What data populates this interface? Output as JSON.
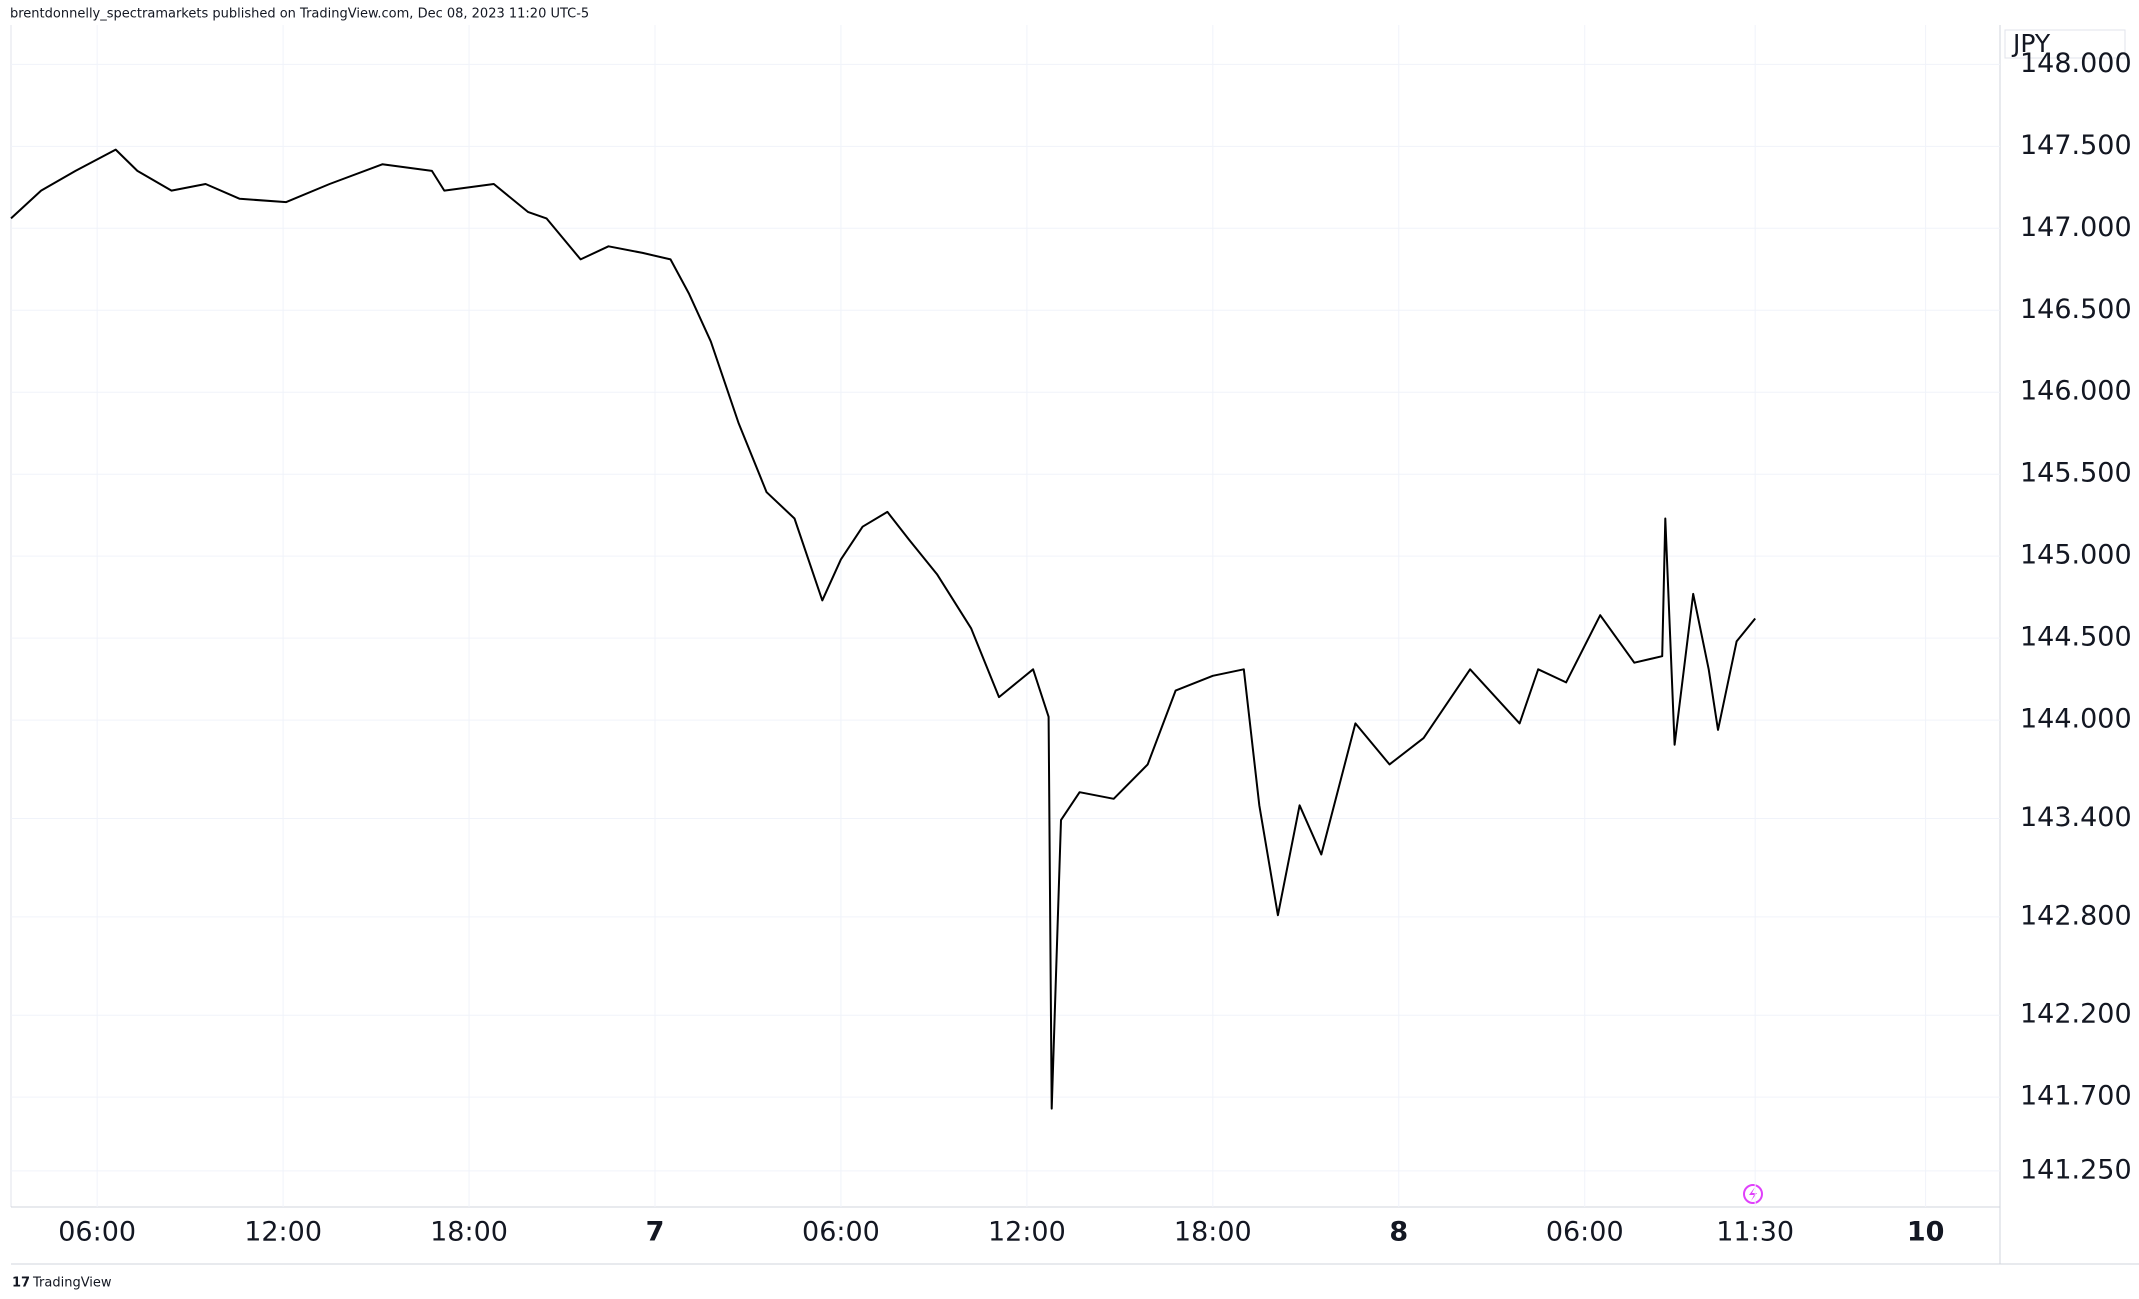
{
  "header": {
    "published": "brentdonnelly_spectramarkets published on TradingView.com, Dec 08, 2023 11:20 UTC-5",
    "symbol": "JPY"
  },
  "footer": {
    "brand": "TradingView"
  },
  "chart_data": {
    "type": "line",
    "x": [
      3.22,
      4.19,
      5.3,
      6.6,
      7.3,
      8.4,
      9.5,
      10.6,
      12.1,
      13.5,
      15.2,
      16.8,
      17.2,
      18.8,
      19.9,
      20.5,
      21.6,
      22.5,
      23.6,
      24.5,
      25.1,
      25.8,
      26.7,
      27.6,
      28.5,
      29.4,
      30.0,
      30.7,
      31.5,
      32.2,
      33.1,
      34.2,
      35.1,
      36.2,
      36.7,
      36.8,
      37.1,
      37.7,
      38.8,
      39.9,
      40.8,
      42.0,
      43.0,
      43.5,
      44.1,
      44.8,
      45.5,
      46.6,
      47.7,
      48.8,
      50.3,
      51.9,
      52.5,
      53.4,
      54.5,
      55.6,
      56.5,
      56.6,
      56.9,
      57.5,
      58.0,
      58.3,
      58.9,
      59.5
    ],
    "series": [
      {
        "color": "#000000",
        "values": [
          147.06,
          147.23,
          147.35,
          147.48,
          147.35,
          147.23,
          147.27,
          147.18,
          147.16,
          147.27,
          147.39,
          147.35,
          147.23,
          147.27,
          147.1,
          147.06,
          146.81,
          146.89,
          146.85,
          146.81,
          146.6,
          146.31,
          145.81,
          145.39,
          145.23,
          144.73,
          144.98,
          145.18,
          145.27,
          145.1,
          144.89,
          144.56,
          144.14,
          144.31,
          144.02,
          141.63,
          143.39,
          143.56,
          143.52,
          143.73,
          144.18,
          144.27,
          144.31,
          143.48,
          142.81,
          143.48,
          143.18,
          143.98,
          143.73,
          143.89,
          144.31,
          143.98,
          144.31,
          144.23,
          144.64,
          144.35,
          144.39,
          145.23,
          143.85,
          144.77,
          144.31,
          143.94,
          144.48,
          144.62
        ]
      }
    ],
    "xlim": [
      3.22,
      67.4
    ],
    "xticks": [
      {
        "value": 6,
        "label": "06:00"
      },
      {
        "value": 12,
        "label": "12:00"
      },
      {
        "value": 18,
        "label": "18:00"
      },
      {
        "value": 24,
        "label": "7"
      },
      {
        "value": 30,
        "label": "06:00"
      },
      {
        "value": 36,
        "label": "12:00"
      },
      {
        "value": 42,
        "label": "18:00"
      },
      {
        "value": 48,
        "label": "8"
      },
      {
        "value": 54,
        "label": "06:00"
      },
      {
        "value": 59.5,
        "label": "11:30"
      },
      {
        "value": 65,
        "label": "10"
      }
    ],
    "ylim": [
      141.03,
      148.24
    ],
    "yticks": [
      {
        "value": 141.25,
        "label": "141.250"
      },
      {
        "value": 141.7,
        "label": "141.700"
      },
      {
        "value": 142.2,
        "label": "142.200"
      },
      {
        "value": 142.8,
        "label": "142.800"
      },
      {
        "value": 143.4,
        "label": "143.400"
      },
      {
        "value": 144,
        "label": "144.000"
      },
      {
        "value": 144.5,
        "label": "144.500"
      },
      {
        "value": 145,
        "label": "145.000"
      },
      {
        "value": 145.5,
        "label": "145.500"
      },
      {
        "value": 146,
        "label": "146.000"
      },
      {
        "value": 146.5,
        "label": "146.500"
      },
      {
        "value": 147,
        "label": "147.000"
      },
      {
        "value": 147.5,
        "label": "147.500"
      },
      {
        "value": 148,
        "label": "148.000"
      }
    ],
    "grid": true
  }
}
